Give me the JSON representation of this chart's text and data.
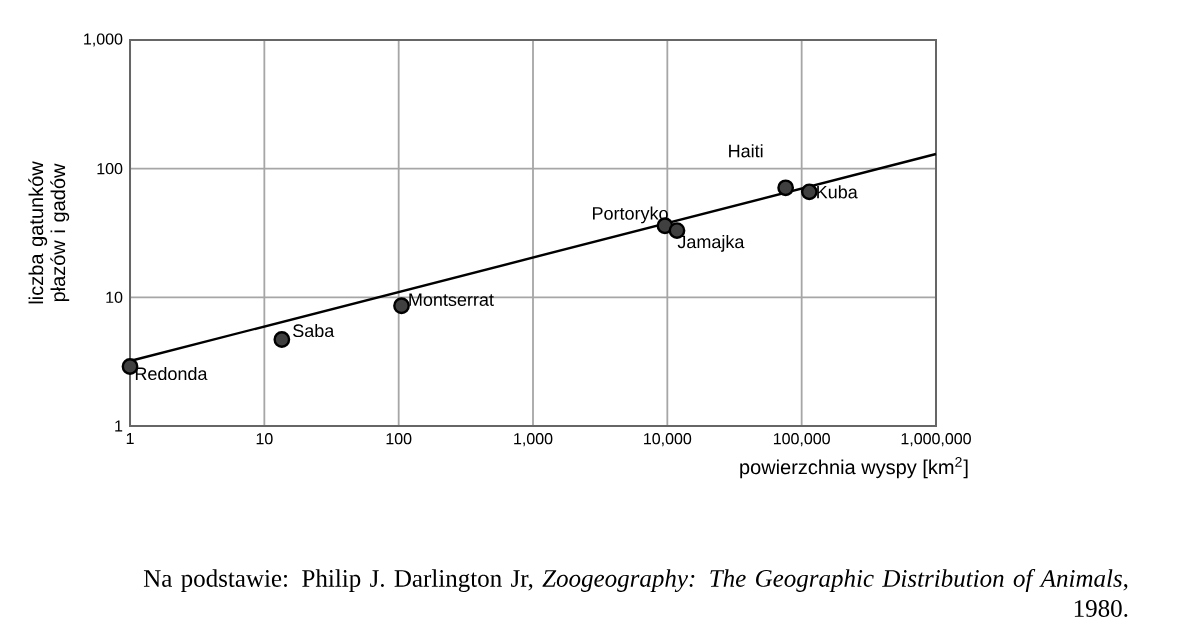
{
  "chart_data": {
    "type": "scatter",
    "xlabel": "powierzchnia wyspy [km$^{2}$]",
    "ylabel": "liczba gatunków płazów i gadów",
    "log": "xy",
    "xlim": [
      1,
      1000000
    ],
    "ylim": [
      1,
      1000
    ],
    "xticks": [
      1,
      10,
      100,
      {
        "value": 1000,
        "label": "1,000"
      },
      {
        "value": 10000,
        "label": "10,000"
      },
      {
        "value": 100000,
        "label": "100,000"
      },
      {
        "value": 1000000,
        "label": "1,000,000"
      }
    ],
    "yticks": [
      1,
      10,
      100,
      {
        "value": 1000,
        "label": "1,000"
      }
    ],
    "grid": true,
    "marker": "circle",
    "series": [
      {
        "color": "#404040",
        "x": [
          1,
          13.5,
          105,
          9600,
          11800,
          76000,
          114000
        ],
        "values": [
          2.9,
          4.7,
          8.6,
          36,
          33,
          71,
          66
        ]
      },
      {
        "type": "line",
        "marker": "none",
        "color": "#000000",
        "x": [
          1,
          1000000
        ],
        "values": [
          3.2,
          130
        ]
      }
    ],
    "annotations": [
      {
        "text": "Redonda",
        "x": 1,
        "y": 2.9
      },
      {
        "text": "Saba",
        "x": 13.5,
        "y": 4.7
      },
      {
        "text": "Montserrat",
        "x": 105,
        "y": 8.6
      },
      {
        "text": "Portoryko",
        "x": 9600,
        "y": 36
      },
      {
        "text": "Jamajka",
        "x": 11800,
        "y": 33
      },
      {
        "text": "Haiti",
        "x": 76000,
        "y": 71
      },
      {
        "text": "Kuba",
        "x": 114000,
        "y": 66
      },
      "Na podstawie: Philip J. Darlington Jr, *Zoogeography: The Geographic Distribution of Animals*, 1980."
    ]
  }
}
